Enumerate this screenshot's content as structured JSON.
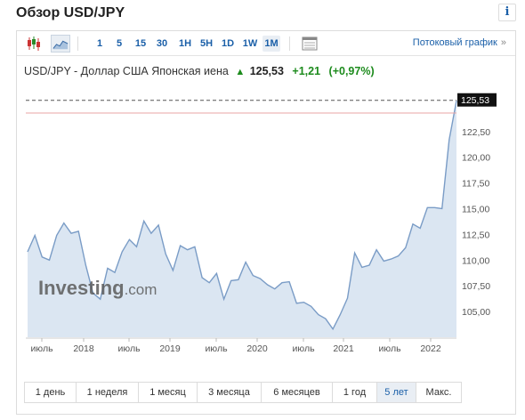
{
  "page": {
    "title": "Обзор USD/JPY",
    "info_label": "i"
  },
  "toolbar": {
    "timeframes": [
      "1",
      "5",
      "15",
      "30",
      "1H",
      "5H",
      "1D",
      "1W",
      "1M"
    ],
    "active_timeframe": "1M",
    "streaming_label": "Потоковый график",
    "streaming_chevron": "»",
    "icons": [
      "candlestick-chart-icon",
      "area-chart-icon",
      "table-view-icon"
    ]
  },
  "quote": {
    "name": "USD/JPY - Доллар США Японская иена",
    "last": "125,53",
    "change": "+1,21",
    "change_pct": "(+0,97%)",
    "direction": "up"
  },
  "watermark": {
    "brand": "Investing",
    "suffix": ".com"
  },
  "chart_data": {
    "type": "area",
    "y_ticks": [
      "125,53",
      "122,50",
      "120,00",
      "117,50",
      "115,00",
      "112,50",
      "110,00",
      "107,50",
      "105,00"
    ],
    "y_tick_values": [
      125.53,
      122.5,
      120,
      117.5,
      115,
      112.5,
      110,
      107.5,
      105
    ],
    "x_ticks": [
      "июль",
      "2018",
      "июль",
      "2019",
      "июль",
      "2020",
      "июль",
      "2021",
      "июль",
      "2022"
    ],
    "ylim": [
      102.5,
      126.2
    ],
    "last_value": 125.53,
    "last_label": "125,53",
    "reference_level": 124.3,
    "grid": false,
    "colors": {
      "line": "#7a9cc6",
      "fill": "#dbe6f2",
      "reference": "#e8a5a5",
      "last_badge": "#111111"
    },
    "series": [
      {
        "values": [
          110.8,
          112.4,
          110.3,
          110.0,
          112.4,
          113.6,
          112.6,
          112.8,
          109.5,
          106.8,
          106.2,
          109.2,
          108.8,
          110.8,
          112.0,
          111.3,
          113.8,
          112.6,
          113.4,
          110.6,
          109.0,
          111.4,
          111.0,
          111.3,
          108.3,
          107.8,
          108.7,
          106.2,
          108.0,
          108.1,
          109.8,
          108.5,
          108.2,
          107.6,
          107.2,
          107.8,
          107.9,
          105.8,
          105.9,
          105.5,
          104.7,
          104.3,
          103.3,
          104.7,
          106.3,
          110.7,
          109.3,
          109.5,
          111.0,
          109.9,
          110.1,
          110.4,
          111.2,
          113.5,
          113.1,
          115.1,
          115.1,
          115.0,
          121.7,
          125.5
        ]
      }
    ]
  },
  "ranges": {
    "items": [
      "1 день",
      "1 неделя",
      "1 месяц",
      "3 месяца",
      "6 месяцев",
      "1 год",
      "5 лет",
      "Макс."
    ],
    "active": "5 лет"
  }
}
